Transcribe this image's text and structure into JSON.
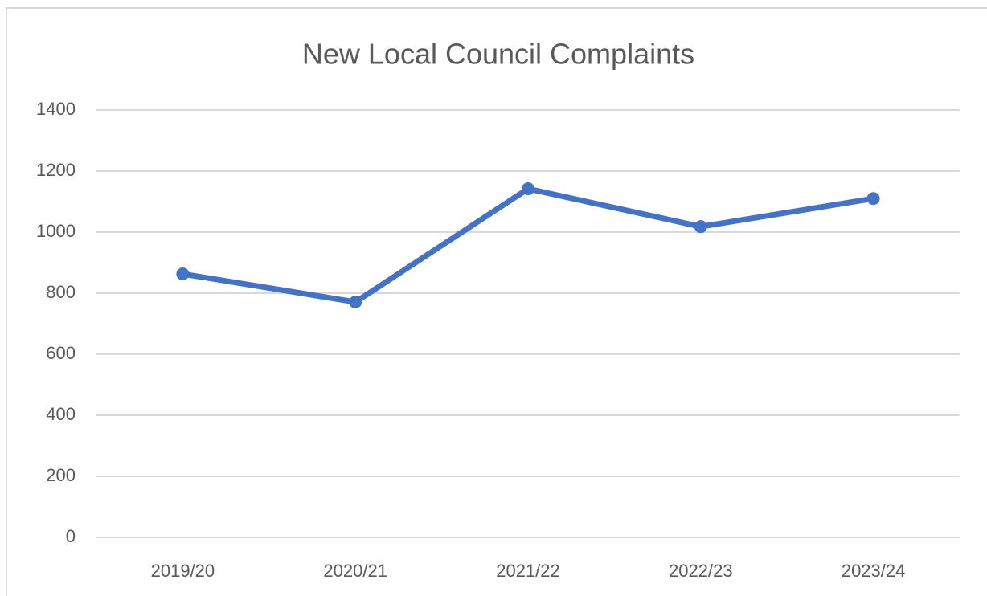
{
  "chart_data": {
    "type": "line",
    "title": "New Local Council Complaints",
    "categories": [
      "2019/20",
      "2020/21",
      "2021/22",
      "2022/23",
      "2023/24"
    ],
    "series": [
      {
        "name": "New Local Council Complaints",
        "color": "#4472c4",
        "values": [
          863,
          771,
          1142,
          1018,
          1110
        ]
      }
    ],
    "ylim": [
      0,
      1400
    ],
    "yticks": [
      0,
      200,
      400,
      600,
      800,
      1000,
      1200,
      1400
    ],
    "grid": true
  }
}
